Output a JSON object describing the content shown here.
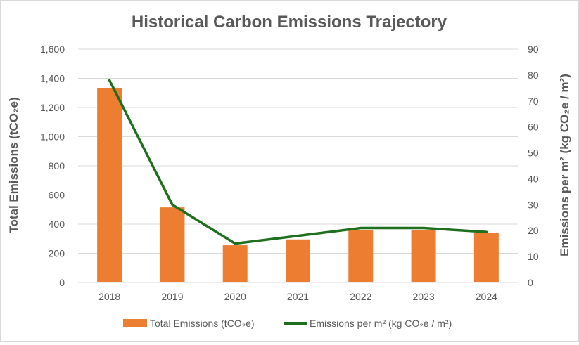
{
  "chart_data": {
    "type": "bar",
    "title": "Historical Carbon Emissions Trajectory",
    "categories": [
      "2018",
      "2019",
      "2020",
      "2021",
      "2022",
      "2023",
      "2024"
    ],
    "series": [
      {
        "name": "Total Emissions (tCO₂e)",
        "type": "bar",
        "axis": "left",
        "color": "#ED7D31",
        "values": [
          1335,
          515,
          255,
          295,
          360,
          360,
          340
        ]
      },
      {
        "name": "Emissions per m² (kg CO₂e / m²)",
        "type": "line",
        "axis": "right",
        "color": "#1E6F1E",
        "values": [
          78,
          30,
          15,
          18,
          21,
          21,
          19.5
        ]
      }
    ],
    "ylabel": "Total Emissions (tCO₂e)",
    "y2label": "Emissions per m² (kg CO₂e / m²)",
    "ylim": [
      0,
      1600
    ],
    "y2lim": [
      0,
      90
    ],
    "yticks": [
      "0",
      "200",
      "400",
      "600",
      "800",
      "1,000",
      "1,200",
      "1,400",
      "1,600"
    ],
    "y2ticks": [
      "0",
      "10",
      "20",
      "30",
      "40",
      "50",
      "60",
      "70",
      "80",
      "90"
    ],
    "grid": true,
    "legend": "bottom"
  }
}
